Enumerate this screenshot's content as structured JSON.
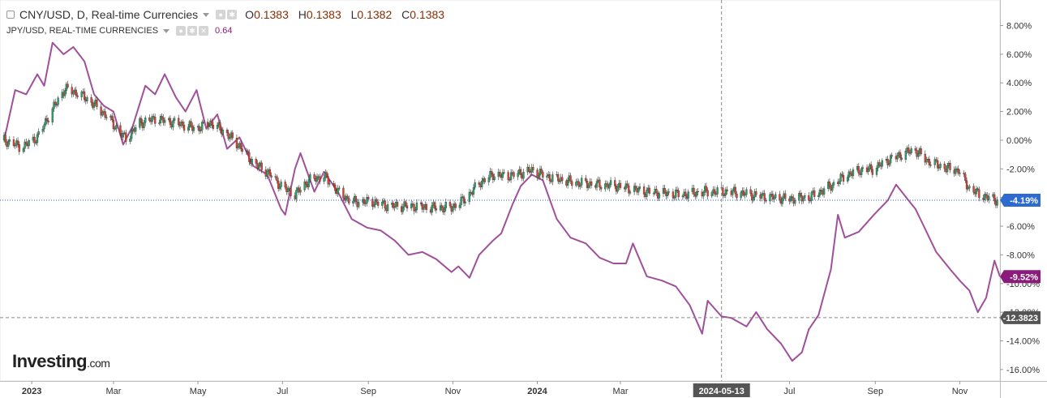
{
  "legend": {
    "main_title": "CNY/USD, D, Real-time Currencies",
    "ohlc": [
      {
        "key": "O",
        "value": "0.1383"
      },
      {
        "key": "H",
        "value": "0.1383"
      },
      {
        "key": "L",
        "value": "0.1382"
      },
      {
        "key": "C",
        "value": "0.1383"
      }
    ],
    "compare_title": "JPY/USD, REAL-TIME CURRENCIES",
    "compare_value": "0.64"
  },
  "brand": {
    "name": "Investing",
    "suffix": ".com"
  },
  "colors": {
    "candle_up": "#26a269",
    "candle_down": "#d9412e",
    "compare_line": "#a0509a",
    "current_line": "#2b63c6",
    "badge_blue": "#2d6bd0",
    "badge_purple": "#8a1b7a",
    "badge_gray": "#555555"
  },
  "chart_data": {
    "type": "line",
    "y_unit": "%",
    "ylim": [
      -16.8,
      9.5
    ],
    "y_ticks": [
      8,
      6,
      4,
      2,
      0,
      -2,
      -4,
      -6,
      -8,
      -10,
      -12,
      -14,
      -16
    ],
    "y_tick_labels": [
      "8.00%",
      "6.00%",
      "4.00%",
      "2.00%",
      "0.00%",
      "-2.00%",
      "-4.00%",
      "-6.00%",
      "-8.00%",
      "-10.00%",
      "-12.00%",
      "-14.00%",
      "-16.00%"
    ],
    "x_range": [
      "2022-12-12",
      "2024-11-30"
    ],
    "x_ticks": [
      {
        "date": "2023-01-01",
        "label": "2023"
      },
      {
        "date": "2023-03-01",
        "label": "Mar"
      },
      {
        "date": "2023-05-01",
        "label": "May"
      },
      {
        "date": "2023-07-01",
        "label": "Jul"
      },
      {
        "date": "2023-09-01",
        "label": "Sep"
      },
      {
        "date": "2023-11-01",
        "label": "Nov"
      },
      {
        "date": "2024-01-01",
        "label": "2024"
      },
      {
        "date": "2024-03-01",
        "label": "Mar"
      },
      {
        "date": "2024-07-01",
        "label": "Jul"
      },
      {
        "date": "2024-09-01",
        "label": "Sep"
      },
      {
        "date": "2024-11-01",
        "label": "Nov"
      }
    ],
    "crosshair": {
      "date": "2024-05-13",
      "label": "2024-05-13",
      "y_value": -12.38,
      "y_label": "-12.3823"
    },
    "current_badges": [
      {
        "series": "CNY/USD",
        "value": -4.19,
        "label": "-4.19%"
      },
      {
        "series": "JPY/USD",
        "value": -9.52,
        "label": "-9.52%"
      }
    ],
    "series": [
      {
        "name": "CNY/USD",
        "style": "candlestick",
        "points": [
          [
            "2022-12-12",
            0.0
          ],
          [
            "2022-12-25",
            -0.5
          ],
          [
            "2023-01-05",
            0.2
          ],
          [
            "2023-01-15",
            2.0
          ],
          [
            "2023-01-25",
            3.6
          ],
          [
            "2023-02-05",
            3.2
          ],
          [
            "2023-02-15",
            2.5
          ],
          [
            "2023-02-25",
            1.6
          ],
          [
            "2023-03-05",
            0.6
          ],
          [
            "2023-03-10",
            0.1
          ],
          [
            "2023-03-20",
            1.2
          ],
          [
            "2023-03-31",
            1.5
          ],
          [
            "2023-04-15",
            1.2
          ],
          [
            "2023-04-30",
            0.8
          ],
          [
            "2023-05-10",
            1.2
          ],
          [
            "2023-05-20",
            0.6
          ],
          [
            "2023-05-31",
            -0.4
          ],
          [
            "2023-06-10",
            -1.6
          ],
          [
            "2023-06-20",
            -2.2
          ],
          [
            "2023-06-30",
            -3.2
          ],
          [
            "2023-07-10",
            -3.8
          ],
          [
            "2023-07-20",
            -2.8
          ],
          [
            "2023-07-31",
            -2.5
          ],
          [
            "2023-08-10",
            -3.6
          ],
          [
            "2023-08-20",
            -4.3
          ],
          [
            "2023-09-05",
            -4.3
          ],
          [
            "2023-09-15",
            -4.6
          ],
          [
            "2023-10-01",
            -4.6
          ],
          [
            "2023-10-15",
            -4.7
          ],
          [
            "2023-10-31",
            -4.7
          ],
          [
            "2023-11-10",
            -4.1
          ],
          [
            "2023-11-20",
            -3.0
          ],
          [
            "2023-11-30",
            -2.4
          ],
          [
            "2023-12-10",
            -2.5
          ],
          [
            "2023-12-20",
            -2.3
          ],
          [
            "2023-12-28",
            -2.1
          ],
          [
            "2024-01-10",
            -2.6
          ],
          [
            "2024-01-31",
            -3.0
          ],
          [
            "2024-02-28",
            -3.2
          ],
          [
            "2024-03-20",
            -3.6
          ],
          [
            "2024-04-15",
            -3.8
          ],
          [
            "2024-05-01",
            -3.6
          ],
          [
            "2024-05-20",
            -3.6
          ],
          [
            "2024-06-10",
            -3.9
          ],
          [
            "2024-06-30",
            -4.1
          ],
          [
            "2024-07-15",
            -4.0
          ],
          [
            "2024-07-31",
            -3.2
          ],
          [
            "2024-08-10",
            -2.5
          ],
          [
            "2024-08-20",
            -2.1
          ],
          [
            "2024-08-31",
            -2.0
          ],
          [
            "2024-09-10",
            -1.4
          ],
          [
            "2024-09-25",
            -0.8
          ],
          [
            "2024-09-30",
            -0.7
          ],
          [
            "2024-10-08",
            -1.4
          ],
          [
            "2024-10-20",
            -1.9
          ],
          [
            "2024-10-31",
            -2.1
          ],
          [
            "2024-11-08",
            -3.4
          ],
          [
            "2024-11-18",
            -3.9
          ],
          [
            "2024-11-28",
            -4.19
          ]
        ]
      },
      {
        "name": "JPY/USD",
        "style": "line",
        "points": [
          [
            "2022-12-12",
            0.0
          ],
          [
            "2022-12-20",
            3.5
          ],
          [
            "2022-12-28",
            3.2
          ],
          [
            "2023-01-05",
            4.6
          ],
          [
            "2023-01-10",
            3.8
          ],
          [
            "2023-01-16",
            6.8
          ],
          [
            "2023-01-24",
            6.0
          ],
          [
            "2023-01-31",
            6.5
          ],
          [
            "2023-02-08",
            5.5
          ],
          [
            "2023-02-15",
            3.2
          ],
          [
            "2023-02-22",
            2.4
          ],
          [
            "2023-03-01",
            2.0
          ],
          [
            "2023-03-08",
            -0.3
          ],
          [
            "2023-03-15",
            1.0
          ],
          [
            "2023-03-24",
            3.8
          ],
          [
            "2023-03-31",
            3.2
          ],
          [
            "2023-04-07",
            4.6
          ],
          [
            "2023-04-15",
            3.0
          ],
          [
            "2023-04-22",
            2.0
          ],
          [
            "2023-04-30",
            3.5
          ],
          [
            "2023-05-07",
            0.8
          ],
          [
            "2023-05-15",
            1.8
          ],
          [
            "2023-05-22",
            -0.6
          ],
          [
            "2023-05-31",
            0.2
          ],
          [
            "2023-06-10",
            -1.8
          ],
          [
            "2023-06-20",
            -2.4
          ],
          [
            "2023-06-30",
            -4.8
          ],
          [
            "2023-07-03",
            -5.2
          ],
          [
            "2023-07-10",
            -2.0
          ],
          [
            "2023-07-14",
            -0.9
          ],
          [
            "2023-07-24",
            -3.6
          ],
          [
            "2023-07-31",
            -2.2
          ],
          [
            "2023-08-10",
            -3.6
          ],
          [
            "2023-08-20",
            -5.5
          ],
          [
            "2023-08-31",
            -6.1
          ],
          [
            "2023-09-10",
            -6.3
          ],
          [
            "2023-09-20",
            -7.0
          ],
          [
            "2023-09-30",
            -8.0
          ],
          [
            "2023-10-10",
            -7.8
          ],
          [
            "2023-10-20",
            -8.3
          ],
          [
            "2023-10-31",
            -9.2
          ],
          [
            "2023-11-05",
            -8.8
          ],
          [
            "2023-11-13",
            -9.6
          ],
          [
            "2023-11-20",
            -8.0
          ],
          [
            "2023-11-30",
            -7.0
          ],
          [
            "2023-12-06",
            -6.5
          ],
          [
            "2023-12-14",
            -4.5
          ],
          [
            "2023-12-20",
            -3.2
          ],
          [
            "2023-12-28",
            -2.4
          ],
          [
            "2024-01-05",
            -2.8
          ],
          [
            "2024-01-15",
            -5.5
          ],
          [
            "2024-01-25",
            -6.8
          ],
          [
            "2024-02-05",
            -7.2
          ],
          [
            "2024-02-15",
            -8.2
          ],
          [
            "2024-02-25",
            -8.6
          ],
          [
            "2024-03-05",
            -8.6
          ],
          [
            "2024-03-10",
            -7.2
          ],
          [
            "2024-03-20",
            -9.5
          ],
          [
            "2024-03-31",
            -9.8
          ],
          [
            "2024-04-10",
            -10.2
          ],
          [
            "2024-04-20",
            -11.5
          ],
          [
            "2024-04-29",
            -13.5
          ],
          [
            "2024-05-03",
            -11.2
          ],
          [
            "2024-05-13",
            -12.3
          ],
          [
            "2024-05-20",
            -12.4
          ],
          [
            "2024-05-31",
            -13.0
          ],
          [
            "2024-06-07",
            -12.0
          ],
          [
            "2024-06-15",
            -13.2
          ],
          [
            "2024-06-25",
            -14.2
          ],
          [
            "2024-07-03",
            -15.4
          ],
          [
            "2024-07-10",
            -14.8
          ],
          [
            "2024-07-15",
            -13.2
          ],
          [
            "2024-07-22",
            -12.2
          ],
          [
            "2024-07-31",
            -9.0
          ],
          [
            "2024-08-05",
            -5.2
          ],
          [
            "2024-08-10",
            -6.8
          ],
          [
            "2024-08-20",
            -6.4
          ],
          [
            "2024-08-31",
            -5.2
          ],
          [
            "2024-09-10",
            -4.2
          ],
          [
            "2024-09-16",
            -3.1
          ],
          [
            "2024-09-25",
            -4.2
          ],
          [
            "2024-09-30",
            -4.8
          ],
          [
            "2024-10-05",
            -5.8
          ],
          [
            "2024-10-15",
            -7.8
          ],
          [
            "2024-10-25",
            -9.0
          ],
          [
            "2024-11-01",
            -9.8
          ],
          [
            "2024-11-08",
            -10.5
          ],
          [
            "2024-11-14",
            -12.0
          ],
          [
            "2024-11-20",
            -11.0
          ],
          [
            "2024-11-26",
            -8.4
          ],
          [
            "2024-11-30",
            -9.52
          ]
        ]
      }
    ]
  }
}
